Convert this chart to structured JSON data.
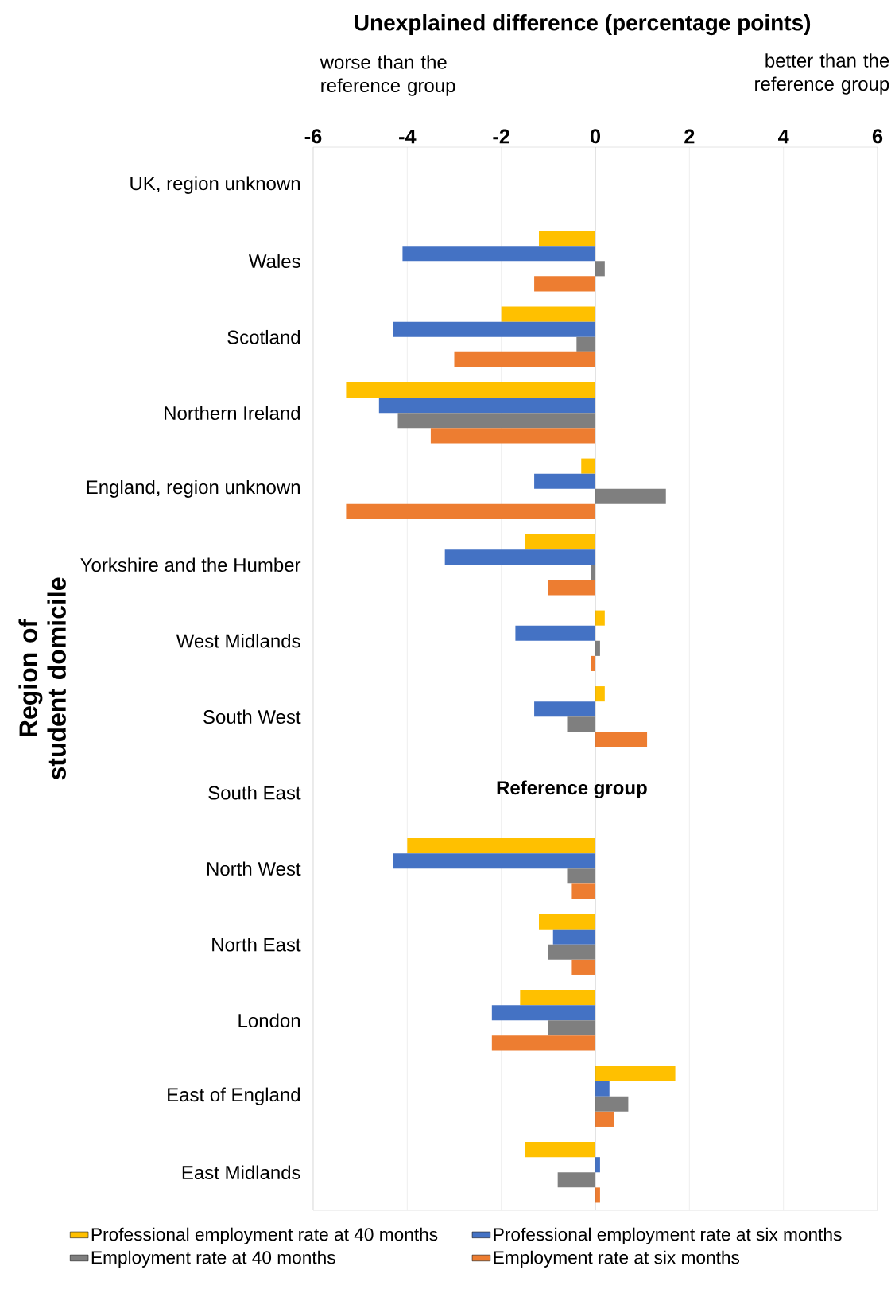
{
  "chart_data": {
    "type": "bar",
    "orientation": "horizontal",
    "xlabel": "Unexplained difference (percentage points)",
    "ylabel": "Region of student domicile",
    "categories": [
      "UK, region unknown",
      "Wales",
      "Scotland",
      "Northern Ireland",
      "England, region unknown",
      "Yorkshire and the Humber",
      "West Midlands",
      "South West",
      "South East",
      "North West",
      "North East",
      "London",
      "East of England",
      "East Midlands"
    ],
    "series": [
      {
        "name": "Professional employment rate at 40 months",
        "color": "#ffc000",
        "values": [
          null,
          -1.2,
          -2.0,
          -5.3,
          -0.3,
          -1.5,
          0.2,
          0.2,
          null,
          -4.0,
          -1.2,
          -1.6,
          1.7,
          -1.5
        ]
      },
      {
        "name": "Professional employment rate at six months",
        "color": "#4472c4",
        "values": [
          null,
          -4.1,
          -4.3,
          -4.6,
          -1.3,
          -3.2,
          -1.7,
          -1.3,
          null,
          -4.3,
          -0.9,
          -2.2,
          0.3,
          0.1
        ]
      },
      {
        "name": "Employment rate at 40 months",
        "color": "#7f7f7f",
        "values": [
          null,
          0.2,
          -0.4,
          -4.2,
          1.5,
          -0.1,
          0.1,
          -0.6,
          null,
          -0.6,
          -1.0,
          -1.0,
          0.7,
          -0.8
        ]
      },
      {
        "name": "Employment rate at six months",
        "color": "#ed7d31",
        "values": [
          null,
          -1.3,
          -3.0,
          -3.5,
          -5.3,
          -1.0,
          -0.1,
          1.1,
          null,
          -0.5,
          -0.5,
          -2.2,
          0.4,
          0.1
        ]
      }
    ],
    "xlim": [
      -6,
      6
    ],
    "xticks": [
      -6,
      -4,
      -2,
      0,
      2,
      4,
      6
    ],
    "grid": "x",
    "legend": "bottom",
    "annotations": [
      "worse than the reference group",
      "better than the reference group",
      "Reference group"
    ]
  }
}
